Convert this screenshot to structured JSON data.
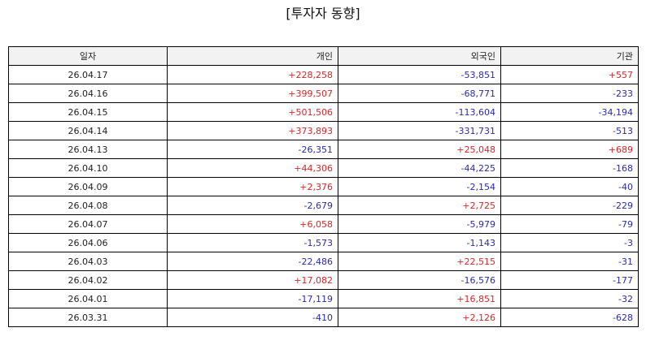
{
  "title": "[투자자 동향]",
  "colors": {
    "positive": "#d62728",
    "negative": "#2b2ba8",
    "header_bg": "#f2f2f2"
  },
  "table": {
    "headers": [
      "일자",
      "개인",
      "외국인",
      "기관"
    ],
    "rows": [
      [
        "26.04.17",
        "+228,258",
        "-53,851",
        "+557"
      ],
      [
        "26.04.16",
        "+399,507",
        "-68,771",
        "-233"
      ],
      [
        "26.04.15",
        "+501,506",
        "-113,604",
        "-34,194"
      ],
      [
        "26.04.14",
        "+373,893",
        "-331,731",
        "-513"
      ],
      [
        "26.04.13",
        "-26,351",
        "+25,048",
        "+689"
      ],
      [
        "26.04.10",
        "+44,306",
        "-44,225",
        "-168"
      ],
      [
        "26.04.09",
        "+2,376",
        "-2,154",
        "-40"
      ],
      [
        "26.04.08",
        "-2,679",
        "+2,725",
        "-229"
      ],
      [
        "26.04.07",
        "+6,058",
        "-5,979",
        "-79"
      ],
      [
        "26.04.06",
        "-1,573",
        "-1,143",
        "-3"
      ],
      [
        "26.04.03",
        "-22,486",
        "+22,515",
        "-31"
      ],
      [
        "26.04.02",
        "+17,082",
        "-16,576",
        "-177"
      ],
      [
        "26.04.01",
        "-17,119",
        "+16,851",
        "-32"
      ],
      [
        "26.03.31",
        "-410",
        "+2,126",
        "-628"
      ]
    ]
  }
}
